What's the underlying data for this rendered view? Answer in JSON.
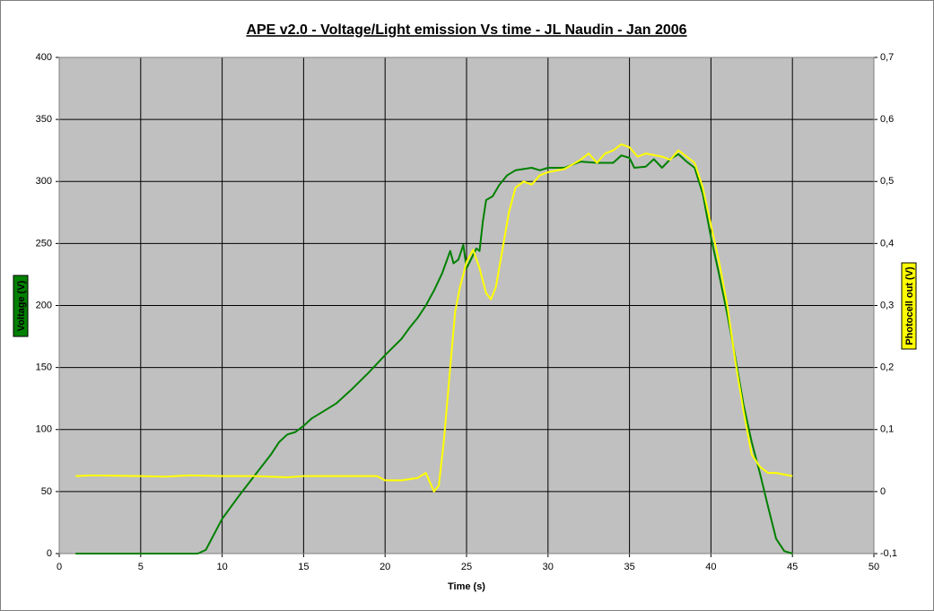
{
  "chart_data": {
    "type": "line",
    "title": "APE v2.0 - Voltage/Light emission Vs time - JL Naudin - Jan 2006",
    "x_label": "Time (s)",
    "y_label": "Voltage (V)",
    "y2_label": "Photocell out (V)",
    "xlim": [
      0,
      50
    ],
    "xticks": [
      0,
      5,
      10,
      15,
      20,
      25,
      30,
      35,
      40,
      45,
      50
    ],
    "ylim": [
      0,
      400
    ],
    "yticks": [
      0,
      50,
      100,
      150,
      200,
      250,
      300,
      350,
      400
    ],
    "y2lim": [
      -0.1,
      0.7
    ],
    "y2ticks": [
      {
        "value": -0.1,
        "label": "-0,1"
      },
      0,
      {
        "value": 0.1,
        "label": "0,1"
      },
      {
        "value": 0.2,
        "label": "0,2"
      },
      {
        "value": 0.3,
        "label": "0,3"
      },
      {
        "value": 0.4,
        "label": "0,4"
      },
      {
        "value": 0.5,
        "label": "0,5"
      },
      {
        "value": 0.6,
        "label": "0,6"
      },
      {
        "value": 0.7,
        "label": "0,7"
      }
    ],
    "grid": true,
    "plot_background": "#c0c0c0",
    "series": [
      {
        "name": "Voltage (V)",
        "color": "#008000",
        "x": [
          1,
          5,
          8.5,
          9,
          10,
          11,
          12,
          13,
          13.5,
          14,
          14.5,
          15,
          15.5,
          16,
          17,
          18,
          19,
          20,
          21,
          21.5,
          22,
          22.5,
          23,
          23.5,
          24,
          24.2,
          24.5,
          24.8,
          25,
          25.3,
          25.6,
          25.8,
          26,
          26.2,
          26.6,
          27,
          27.5,
          28,
          29,
          29.5,
          30,
          31,
          32,
          33,
          34,
          34.5,
          35,
          35.3,
          36,
          36.5,
          37,
          37.5,
          38,
          38.5,
          39,
          39.5,
          40,
          40.5,
          41,
          41.5,
          42,
          42.5,
          43,
          43.5,
          44,
          44.5,
          45
        ],
        "values": [
          0,
          0,
          0,
          3,
          28,
          46,
          63,
          80,
          90,
          96,
          98,
          103,
          109,
          113,
          121,
          133,
          146,
          160,
          173,
          182,
          190,
          200,
          212,
          226,
          244,
          234,
          237,
          249,
          230,
          238,
          246,
          244,
          268,
          285,
          288,
          297,
          305,
          309,
          311,
          309,
          311,
          311,
          316,
          315,
          315,
          321,
          319,
          311,
          312,
          318,
          311,
          318,
          322,
          316,
          311,
          290,
          255,
          225,
          193,
          158,
          120,
          90,
          65,
          38,
          12,
          2,
          0
        ]
      },
      {
        "name": "Photocell out (V)",
        "color": "#ffff00",
        "axis": "y2",
        "x": [
          1,
          2,
          5,
          6.5,
          8,
          10,
          12,
          14,
          15,
          18,
          19.5,
          20,
          21,
          22,
          22.5,
          23,
          23.3,
          23.6,
          24,
          24.3,
          24.6,
          25,
          25.4,
          25.8,
          26.2,
          26.5,
          26.8,
          27.2,
          27.6,
          28,
          28.5,
          29,
          29.5,
          30,
          31,
          32,
          32.5,
          33,
          33.5,
          34,
          34.5,
          35,
          35.5,
          36,
          37,
          37.5,
          38,
          38.5,
          39,
          39.5,
          40,
          40.5,
          41,
          41.5,
          42,
          42.5,
          43,
          43.5,
          44,
          45
        ],
        "values": [
          0.025,
          0.026,
          0.025,
          0.024,
          0.026,
          0.025,
          0.025,
          0.023,
          0.025,
          0.025,
          0.025,
          0.018,
          0.018,
          0.022,
          0.03,
          0.0,
          0.01,
          0.08,
          0.2,
          0.29,
          0.33,
          0.37,
          0.39,
          0.36,
          0.32,
          0.31,
          0.33,
          0.39,
          0.45,
          0.49,
          0.5,
          0.495,
          0.51,
          0.515,
          0.52,
          0.535,
          0.545,
          0.53,
          0.545,
          0.55,
          0.56,
          0.555,
          0.54,
          0.545,
          0.54,
          0.535,
          0.55,
          0.54,
          0.53,
          0.49,
          0.43,
          0.37,
          0.3,
          0.21,
          0.13,
          0.06,
          0.04,
          0.03,
          0.03,
          0.025
        ]
      }
    ]
  }
}
